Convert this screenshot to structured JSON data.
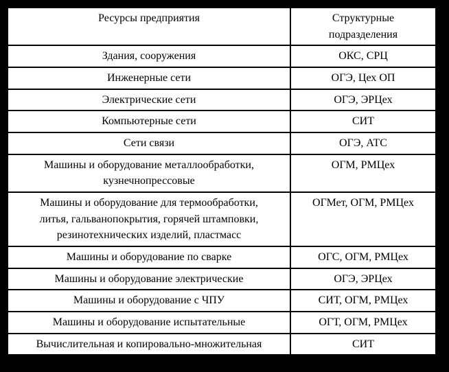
{
  "page": {
    "background_color": "#000000"
  },
  "table": {
    "border_color": "#000000",
    "cell_background": "#ffffff",
    "text_color": "#000000",
    "headers": {
      "resources": "Ресурсы предприятия",
      "departments": "Структурные\nподразделения"
    },
    "rows": [
      {
        "resource": "Здания, сооружения",
        "departments": "ОКС, СРЦ"
      },
      {
        "resource": "Инженерные сети",
        "departments": "ОГЭ, Цех ОП"
      },
      {
        "resource": "Электрические сети",
        "departments": "ОГЭ, ЭРЦех"
      },
      {
        "resource": "Компьютерные сети",
        "departments": "СИТ"
      },
      {
        "resource": "Сети связи",
        "departments": "ОГЭ, АТС"
      },
      {
        "resource": "Машины и оборудование металлообработки,\nкузнечнопрессовые",
        "departments": "ОГМ, РМЦех"
      },
      {
        "resource": "Машины и оборудование для термообработки,\nлитья, гальванопокрытия, горячей штамповки,\nрезинотехнических изделий, пластмасс",
        "departments": "ОГМет, ОГМ, РМЦех"
      },
      {
        "resource": "Машины и оборудование по сварке",
        "departments": "ОГС, ОГМ, РМЦех"
      },
      {
        "resource": "Машины и оборудование электрические",
        "departments": "ОГЭ, ЭРЦех"
      },
      {
        "resource": "Машины и оборудование с ЧПУ",
        "departments": "СИТ, ОГМ, РМЦех"
      },
      {
        "resource": "Машины и оборудование испытательные",
        "departments": "ОГТ, ОГМ, РМЦех"
      },
      {
        "resource": "Вычислительная и копировально-множительная",
        "departments": "СИТ"
      }
    ]
  }
}
